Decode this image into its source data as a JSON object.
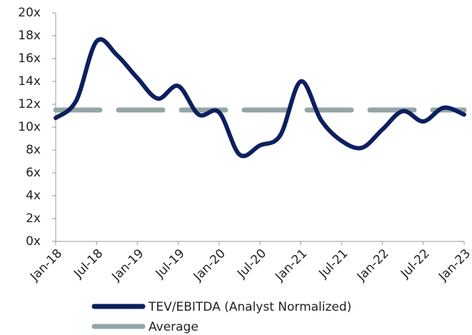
{
  "chart_data": {
    "type": "line",
    "categories": [
      "Jan-18",
      null,
      "Jul-18",
      null,
      "Jan-19",
      null,
      "Jul-19",
      null,
      "Jan-20",
      null,
      "Jul-20",
      null,
      "Jan-21",
      null,
      "Jul-21",
      null,
      "Jan-22",
      null,
      "Jul-22",
      null,
      "Jan-23"
    ],
    "series": [
      {
        "name": "TEV/EBITDA (Analyst Normalized)",
        "color": "#0c1f5e",
        "values": [
          10.8,
          12.3,
          17.5,
          16.3,
          14.3,
          12.5,
          13.6,
          11.1,
          11.3,
          7.6,
          8.4,
          9.3,
          14.0,
          10.6,
          8.8,
          8.2,
          9.8,
          11.4,
          10.5,
          11.7,
          11.1
        ]
      },
      {
        "name": "Average",
        "color": "#95a5a6",
        "dashed": true,
        "values": [
          11.5,
          11.5,
          11.5,
          11.5,
          11.5,
          11.5,
          11.5,
          11.5,
          11.5,
          11.5,
          11.5,
          11.5,
          11.5,
          11.5,
          11.5,
          11.5,
          11.5,
          11.5,
          11.5,
          11.5,
          11.5
        ]
      }
    ],
    "ylim": [
      0,
      20
    ],
    "yticks": [
      {
        "value": 0,
        "label": "0x"
      },
      {
        "value": 2,
        "label": "2x"
      },
      {
        "value": 4,
        "label": "4x"
      },
      {
        "value": 6,
        "label": "6x"
      },
      {
        "value": 8,
        "label": "8x"
      },
      {
        "value": 10,
        "label": "10x"
      },
      {
        "value": 12,
        "label": "12x"
      },
      {
        "value": 14,
        "label": "14x"
      },
      {
        "value": 16,
        "label": "16x"
      },
      {
        "value": 18,
        "label": "18x"
      },
      {
        "value": 20,
        "label": "20x"
      }
    ],
    "legend": "bottom"
  }
}
